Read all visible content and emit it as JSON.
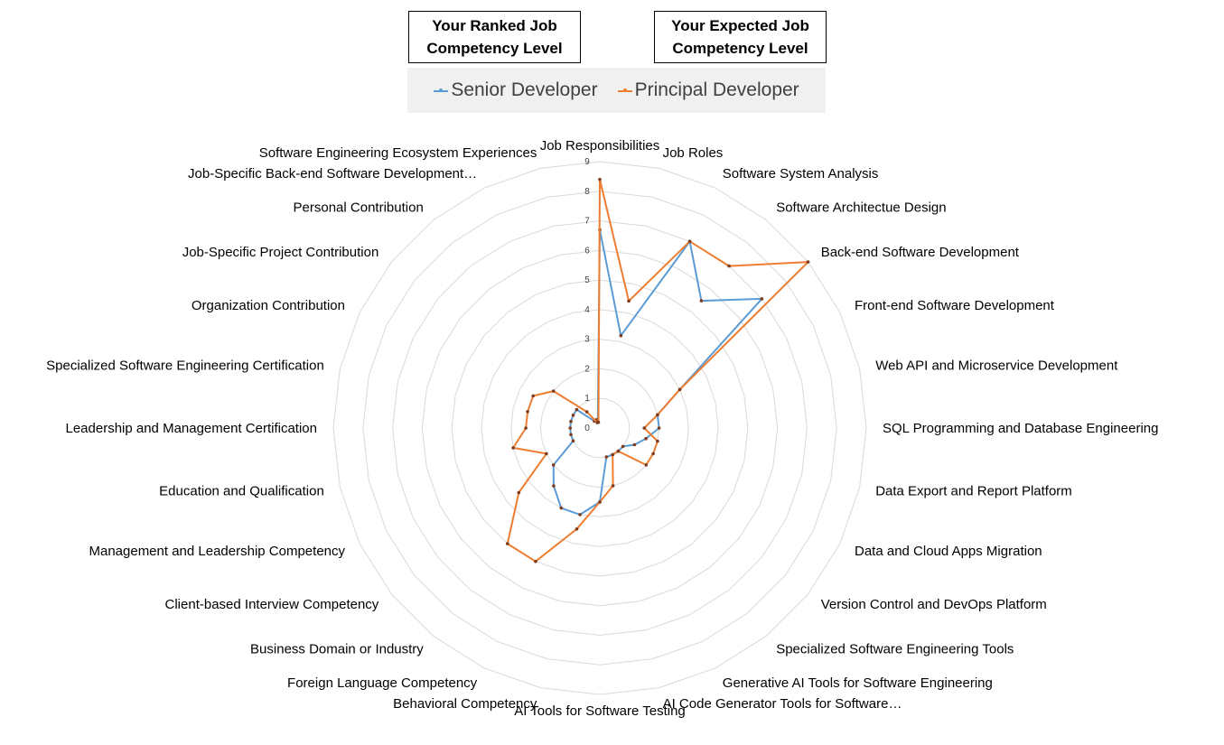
{
  "boxes": {
    "left": "Your Ranked Job Competency Level",
    "right": "Your Expected Job Competency Level"
  },
  "chart_data": {
    "type": "radar",
    "title": "",
    "categories": [
      "Job Responsibilities",
      "Job Roles",
      "Software System Analysis",
      "Software Architectue Design",
      "Back-end Software Development",
      "Front-end Software Development",
      "Web API and Microservice Development",
      "SQL Programming and Database Engineering",
      "Data Export and Report Platform",
      "Data and Cloud Apps Migration",
      "Version Control and DevOps Platform",
      "Specialized Software Engineering Tools",
      "Generative AI Tools for Software Engineering",
      "AI Code Generator Tools for Software…",
      "AI Tools for Software Testing",
      "Behavioral Competency",
      "Foreign Language Competency",
      "Business Domain or Industry",
      "Client-based Interview Competency",
      "Management and Leadership Competency",
      "Education and Qualification",
      "Leadership and Management Certification",
      "Specialized Software Engineering Certification",
      "Organization Contribution",
      "Job-Specific Project Contribution",
      "Personal Contribution",
      "Job-Specific Back-end Software Development…",
      "Software Engineering Ecosystem Experiences"
    ],
    "series": [
      {
        "name": "Senior Developer",
        "color": "#5B9BD5",
        "values": [
          6.7,
          3.2,
          7.0,
          5.5,
          7.0,
          3.0,
          2.0,
          2.0,
          1.6,
          1.3,
          1.0,
          1.0,
          1.0,
          1.0,
          2.5,
          3.0,
          3.0,
          2.5,
          2.0,
          1.0,
          1.0,
          1.0,
          1.0,
          1.0,
          1.0,
          0.3,
          0.3,
          0.3
        ]
      },
      {
        "name": "Principal Developer",
        "color": "#ED7D31",
        "values": [
          8.4,
          4.4,
          7.0,
          7.0,
          9.0,
          3.0,
          2.0,
          1.5,
          2.0,
          2.0,
          2.0,
          1.0,
          1.0,
          2.0,
          2.5,
          3.5,
          5.0,
          5.0,
          3.5,
          2.0,
          3.0,
          2.5,
          2.5,
          2.5,
          2.0,
          0.7,
          0.2,
          0.2
        ]
      }
    ],
    "rlim": [
      0,
      9
    ],
    "r_ticks": [
      "0",
      "1",
      "2",
      "3",
      "4",
      "5",
      "6",
      "7",
      "8",
      "9"
    ],
    "grid": true,
    "legend_position": "top"
  }
}
